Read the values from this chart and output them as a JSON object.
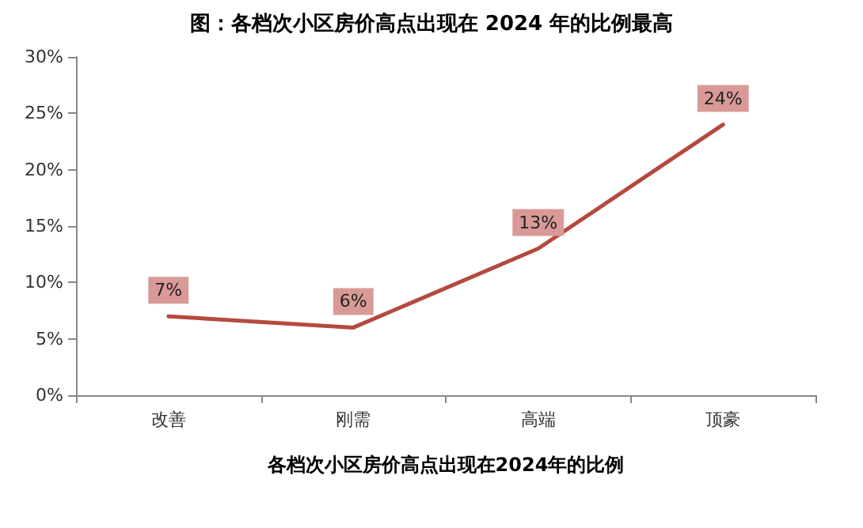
{
  "chart_data": {
    "type": "line",
    "title": "图：各档次小区房价高点出现在 2024 年的比例最高",
    "xlabel": "各档次小区房价高点出现在2024年的比例",
    "categories": [
      "改善",
      "刚需",
      "高端",
      "顶豪"
    ],
    "series": [
      {
        "color": "#b5493f",
        "values": [
          7,
          6,
          13,
          24
        ],
        "value_labels": [
          "7%",
          "6%",
          "13%",
          "24%"
        ]
      }
    ],
    "ylim": [
      0,
      30
    ],
    "yticks": [
      {
        "value": 0,
        "label": "0%"
      },
      {
        "value": 5,
        "label": "5%"
      },
      {
        "value": 10,
        "label": "10%"
      },
      {
        "value": 15,
        "label": "15%"
      },
      {
        "value": 20,
        "label": "20%"
      },
      {
        "value": 25,
        "label": "25%"
      },
      {
        "value": 30,
        "label": "30%"
      }
    ],
    "grid": false,
    "marker": "none",
    "line_style": "solid"
  }
}
